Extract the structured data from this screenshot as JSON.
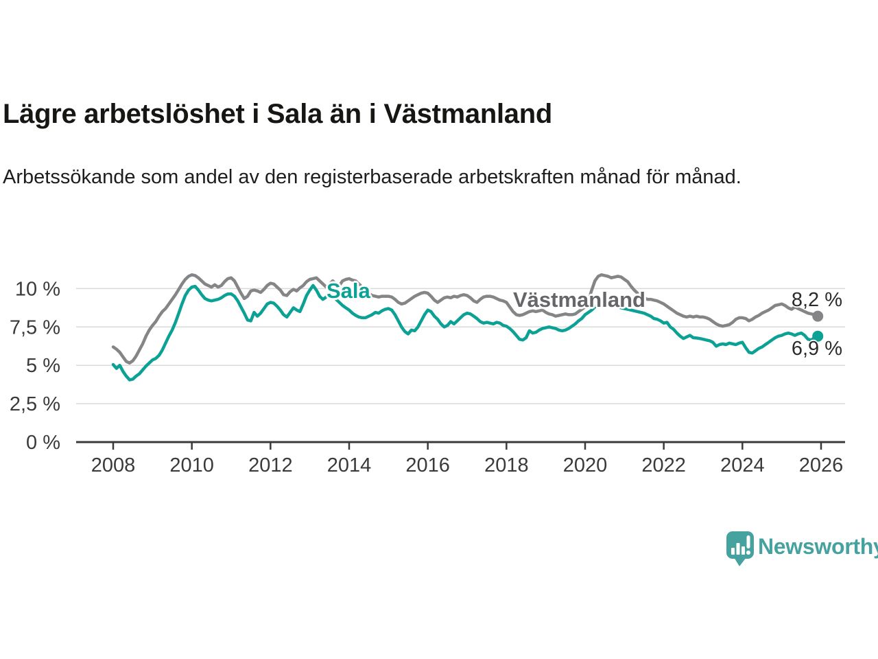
{
  "header": {
    "title": "Lägre arbetslöshet i Sala än i Västmanland",
    "subtitle": "Arbetssökande som andel av den registerbaserade arbetskraften månad för månad."
  },
  "colors": {
    "sala": "#0ba195",
    "vastmanland": "#858588",
    "vastmanland_label": "#65656a",
    "axis": "#3a3a3a",
    "grid": "#d9d9d9",
    "value_label": "#2b2b2b",
    "brand": "#46a29e"
  },
  "chart_data": {
    "type": "line",
    "x_start_year": 2008,
    "x_interval": "monthly",
    "x_tick_years": [
      2008,
      2010,
      2012,
      2014,
      2016,
      2018,
      2020,
      2022,
      2024,
      2026
    ],
    "y_ticks": [
      {
        "value": 0,
        "label": "0 %"
      },
      {
        "value": 2.5,
        "label": "2,5 %"
      },
      {
        "value": 5,
        "label": "5 %"
      },
      {
        "value": 7.5,
        "label": "7,5 %"
      },
      {
        "value": 10,
        "label": "10 %"
      }
    ],
    "ylim": [
      0,
      11.6
    ],
    "grid": "horizontal",
    "legend_position": "inline-labels",
    "series": [
      {
        "name": "Västmanland",
        "end_label": "8,2 %",
        "end_value": 8.2,
        "values": [
          6.2,
          6.05,
          5.85,
          5.55,
          5.25,
          5.15,
          5.3,
          5.6,
          6.0,
          6.4,
          6.9,
          7.3,
          7.6,
          7.85,
          8.2,
          8.5,
          8.7,
          9.0,
          9.3,
          9.6,
          9.95,
          10.3,
          10.6,
          10.8,
          10.9,
          10.85,
          10.7,
          10.5,
          10.3,
          10.2,
          10.1,
          10.25,
          10.1,
          10.2,
          10.45,
          10.65,
          10.7,
          10.5,
          10.1,
          9.7,
          9.35,
          9.5,
          9.85,
          9.9,
          9.85,
          9.75,
          9.95,
          10.2,
          10.35,
          10.3,
          10.1,
          9.9,
          9.6,
          9.55,
          9.8,
          9.95,
          9.85,
          10.05,
          10.2,
          10.45,
          10.6,
          10.65,
          10.7,
          10.5,
          10.3,
          10.1,
          10.3,
          10.5,
          10.3,
          10.2,
          10.5,
          10.6,
          10.65,
          10.55,
          10.5,
          10.3,
          10.1,
          9.9,
          9.7,
          9.55,
          9.5,
          9.45,
          9.5,
          9.5,
          9.5,
          9.45,
          9.3,
          9.1,
          9.0,
          9.05,
          9.2,
          9.35,
          9.5,
          9.6,
          9.7,
          9.75,
          9.7,
          9.5,
          9.25,
          9.1,
          9.25,
          9.4,
          9.45,
          9.4,
          9.5,
          9.45,
          9.55,
          9.6,
          9.55,
          9.4,
          9.2,
          9.1,
          9.3,
          9.45,
          9.5,
          9.5,
          9.45,
          9.35,
          9.25,
          9.2,
          9.1,
          8.8,
          8.5,
          8.3,
          8.25,
          8.3,
          8.4,
          8.5,
          8.55,
          8.5,
          8.55,
          8.6,
          8.45,
          8.35,
          8.3,
          8.2,
          8.25,
          8.3,
          8.35,
          8.3,
          8.3,
          8.35,
          8.5,
          8.65,
          8.8,
          9.2,
          9.9,
          10.5,
          10.8,
          10.9,
          10.85,
          10.8,
          10.7,
          10.75,
          10.8,
          10.75,
          10.6,
          10.45,
          10.15,
          9.9,
          9.7,
          9.55,
          9.4,
          9.3,
          9.3,
          9.25,
          9.2,
          9.1,
          9.0,
          8.85,
          8.7,
          8.55,
          8.4,
          8.3,
          8.2,
          8.15,
          8.2,
          8.15,
          8.2,
          8.15,
          8.15,
          8.1,
          8.0,
          7.85,
          7.7,
          7.6,
          7.55,
          7.6,
          7.65,
          7.8,
          8.0,
          8.1,
          8.1,
          8.05,
          7.9,
          8.0,
          8.15,
          8.25,
          8.4,
          8.5,
          8.6,
          8.75,
          8.9,
          8.95,
          9.0,
          8.9,
          8.75,
          8.65,
          8.8,
          8.7,
          8.6,
          8.5,
          8.4,
          8.35,
          8.3,
          8.2
        ]
      },
      {
        "name": "Sala",
        "end_label": "6,9 %",
        "end_value": 6.9,
        "values": [
          5.05,
          4.8,
          5.0,
          4.6,
          4.3,
          4.05,
          4.1,
          4.3,
          4.45,
          4.7,
          4.95,
          5.15,
          5.35,
          5.45,
          5.65,
          6.0,
          6.45,
          6.9,
          7.3,
          7.8,
          8.4,
          9.0,
          9.55,
          9.9,
          10.1,
          10.15,
          9.9,
          9.6,
          9.35,
          9.25,
          9.2,
          9.25,
          9.3,
          9.4,
          9.55,
          9.65,
          9.65,
          9.5,
          9.2,
          8.8,
          8.4,
          7.95,
          7.9,
          8.45,
          8.2,
          8.4,
          8.7,
          9.0,
          9.1,
          9.05,
          8.85,
          8.6,
          8.3,
          8.15,
          8.45,
          8.75,
          8.6,
          8.5,
          9.0,
          9.55,
          9.9,
          10.2,
          9.9,
          9.5,
          9.3,
          9.45,
          9.55,
          9.45,
          9.3,
          9.1,
          8.9,
          8.75,
          8.6,
          8.4,
          8.25,
          8.15,
          8.1,
          8.1,
          8.2,
          8.3,
          8.45,
          8.4,
          8.55,
          8.65,
          8.7,
          8.6,
          8.3,
          7.9,
          7.5,
          7.2,
          7.05,
          7.3,
          7.25,
          7.5,
          7.9,
          8.3,
          8.6,
          8.5,
          8.2,
          8.0,
          7.7,
          7.5,
          7.6,
          7.85,
          7.7,
          7.9,
          8.1,
          8.3,
          8.4,
          8.35,
          8.2,
          8.05,
          7.85,
          7.75,
          7.8,
          7.75,
          7.7,
          7.8,
          7.75,
          7.6,
          7.55,
          7.4,
          7.2,
          6.95,
          6.7,
          6.65,
          6.8,
          7.25,
          7.1,
          7.15,
          7.3,
          7.4,
          7.45,
          7.5,
          7.45,
          7.4,
          7.3,
          7.25,
          7.3,
          7.4,
          7.55,
          7.7,
          7.9,
          8.05,
          8.3,
          8.45,
          8.6,
          8.8,
          8.95,
          9.0,
          9.0,
          8.95,
          8.9,
          8.85,
          8.8,
          8.75,
          8.7,
          8.65,
          8.6,
          8.55,
          8.5,
          8.45,
          8.4,
          8.3,
          8.2,
          8.05,
          8.0,
          7.9,
          7.75,
          7.8,
          7.5,
          7.35,
          7.1,
          6.9,
          6.75,
          6.85,
          6.95,
          6.8,
          6.78,
          6.75,
          6.7,
          6.65,
          6.6,
          6.5,
          6.25,
          6.35,
          6.4,
          6.35,
          6.45,
          6.4,
          6.35,
          6.45,
          6.5,
          6.15,
          5.85,
          5.8,
          5.95,
          6.1,
          6.2,
          6.35,
          6.5,
          6.65,
          6.8,
          6.9,
          6.95,
          7.05,
          7.1,
          7.05,
          6.95,
          7.05,
          7.1,
          6.95,
          6.7,
          6.65,
          6.8,
          6.9
        ]
      }
    ]
  },
  "branding": {
    "logo_text": "Newsworthy",
    "logo_icon": "speech-bubble-bar-chart-icon"
  }
}
